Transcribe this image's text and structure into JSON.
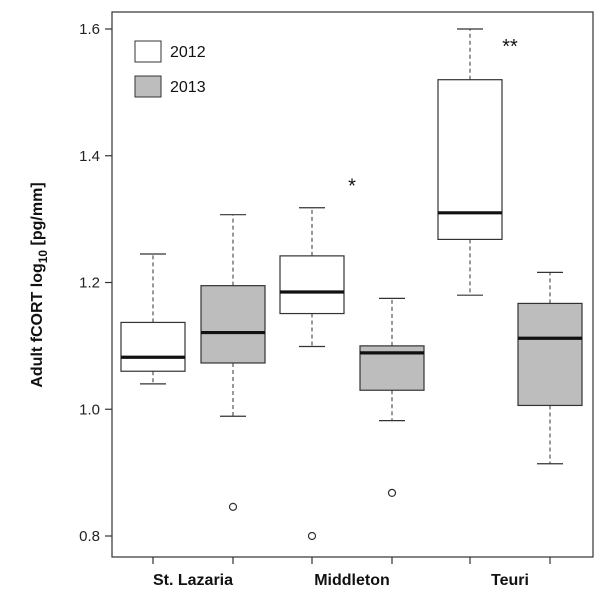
{
  "chart_data": {
    "type": "boxplot",
    "ylabel_main": "Adult fCORT log",
    "ylabel_sub": "10",
    "ylabel_unit": " [pg/mm]",
    "ylim": [
      0.78,
      1.63
    ],
    "yticks": [
      0.8,
      1.0,
      1.2,
      1.4,
      1.6
    ],
    "ytick_labels": [
      "0.8",
      "1.0",
      "1.2",
      "1.4",
      "1.6"
    ],
    "categories": [
      "St. Lazaria",
      "Middleton",
      "Teuri"
    ],
    "legend": {
      "position": "top-left",
      "entries": [
        "2012",
        "2013"
      ]
    },
    "colors": {
      "2012": "#ffffff",
      "2013": "#bdbdbd"
    },
    "series": [
      {
        "name": "2012",
        "boxes": [
          {
            "whisker_low": 1.04,
            "q1": 1.06,
            "median": 1.082,
            "q3": 1.137,
            "whisker_high": 1.245,
            "outliers": []
          },
          {
            "whisker_low": 1.099,
            "q1": 1.151,
            "median": 1.185,
            "q3": 1.242,
            "whisker_high": 1.318,
            "outliers": [
              0.8
            ]
          },
          {
            "whisker_low": 1.18,
            "q1": 1.268,
            "median": 1.31,
            "q3": 1.52,
            "whisker_high": 1.6,
            "outliers": []
          }
        ]
      },
      {
        "name": "2013",
        "boxes": [
          {
            "whisker_low": 0.989,
            "q1": 1.073,
            "median": 1.121,
            "q3": 1.195,
            "whisker_high": 1.307,
            "outliers": [
              0.846
            ]
          },
          {
            "whisker_low": 0.982,
            "q1": 1.03,
            "median": 1.089,
            "q3": 1.1,
            "whisker_high": 1.175,
            "outliers": [
              0.868
            ]
          },
          {
            "whisker_low": 0.914,
            "q1": 1.006,
            "median": 1.112,
            "q3": 1.167,
            "whisker_high": 1.216,
            "outliers": []
          }
        ]
      }
    ],
    "annotations": [
      {
        "text": "*",
        "category": "Middleton",
        "y": 1.355
      },
      {
        "text": "**",
        "category": "Teuri",
        "y": 1.575
      }
    ]
  }
}
